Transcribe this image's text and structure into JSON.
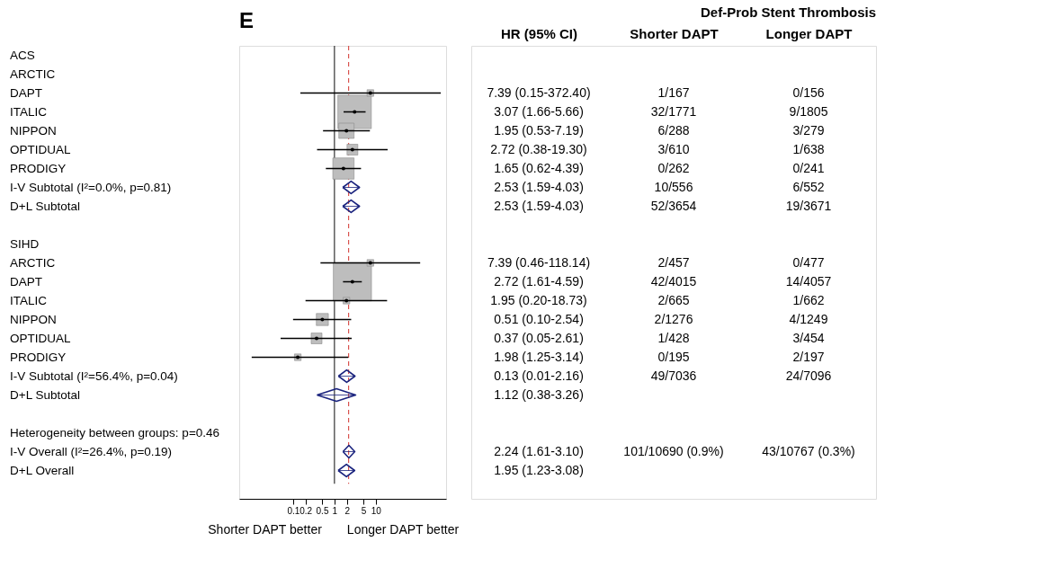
{
  "chart_data": [
    {
      "type": "scatter",
      "title": "E",
      "orientation": "horizontal",
      "log": "x",
      "grid": false,
      "legend": false,
      "xlim": [
        0.005,
        500
      ],
      "xticks": [
        0.1,
        0.2,
        0.5,
        1,
        2,
        5,
        10
      ],
      "categories": [
        "ACS",
        "ARCTIC",
        "DAPT",
        "ITALIC",
        "NIPPON",
        "OPTIDUAL",
        "PRODIGY",
        "I-V Subtotal  (I²=0.0%, p=0.81)",
        "D+L Subtotal",
        null,
        "SIHD",
        "ARCTIC",
        "DAPT",
        "ITALIC",
        "NIPPON",
        "OPTIDUAL",
        "PRODIGY",
        "I-V Subtotal  (I²=56.4%, p=0.04)",
        "D+L Subtotal",
        null,
        "Heterogeneity between groups: p=0.46",
        "I-V Overall  (I²=26.4%, p=0.19)",
        "D+L Overall"
      ],
      "series": [
        {
          "type": "bubble",
          "marker": "square",
          "color": "#bdbdbd",
          "values": [
            null,
            null,
            7.39,
            3.07,
            1.95,
            2.72,
            1.65,
            null,
            null,
            null,
            null,
            7.39,
            2.72,
            1.95,
            0.51,
            0.37,
            0.13,
            null,
            null,
            null,
            null,
            null,
            null
          ],
          "errors": [
            null,
            null,
            [
              0.15,
              372.4
            ],
            [
              1.66,
              5.66
            ],
            [
              0.53,
              7.19
            ],
            [
              0.38,
              19.3
            ],
            [
              0.62,
              4.39
            ],
            null,
            null,
            null,
            null,
            [
              0.46,
              118.14
            ],
            [
              1.61,
              4.59
            ],
            [
              0.2,
              18.73
            ],
            [
              0.1,
              2.54
            ],
            [
              0.05,
              2.61
            ],
            [
              0.01,
              2.16
            ],
            null,
            null,
            null,
            null,
            null,
            null
          ],
          "sizes": [
            null,
            null,
            0.03,
            0.77,
            0.16,
            0.08,
            0.31,
            null,
            null,
            null,
            null,
            0.03,
            1,
            0.03,
            0.1,
            0.08,
            0.03,
            null,
            null,
            null,
            null,
            null,
            null
          ]
        },
        {
          "type": "scatter",
          "marker": "diamond",
          "color": "#1a237e",
          "values": [
            null,
            null,
            null,
            null,
            null,
            null,
            null,
            2.53,
            2.53,
            null,
            null,
            null,
            null,
            null,
            null,
            null,
            null,
            1.98,
            1.12,
            null,
            null,
            2.24,
            1.95
          ],
          "errors": [
            null,
            null,
            null,
            null,
            null,
            null,
            null,
            [
              1.59,
              4.03
            ],
            [
              1.59,
              4.03
            ],
            null,
            null,
            null,
            null,
            null,
            null,
            null,
            null,
            [
              1.25,
              3.14
            ],
            [
              0.38,
              3.26
            ],
            null,
            null,
            [
              1.61,
              3.1
            ],
            [
              1.23,
              3.08
            ]
          ]
        }
      ],
      "ref_lines": [
        {
          "axis": "x",
          "value": 1,
          "color": "#333333",
          "line_style": "solid"
        },
        {
          "axis": "x",
          "value": 2.2,
          "color": "#d9534f",
          "line_style": "dashed"
        }
      ],
      "annotations": [
        "Shorter DAPT better",
        "Longer DAPT better"
      ]
    },
    {
      "type": "other",
      "title": "Def-Prob Stent Thrombosis",
      "categories": [
        "HR (95% CI)",
        "Shorter DAPT",
        "Longer DAPT"
      ],
      "cell_labels": [
        [
          null,
          null,
          null
        ],
        [
          null,
          null,
          null
        ],
        [
          "7.39 (0.15-372.40)",
          "1/167",
          "0/156"
        ],
        [
          "3.07 (1.66-5.66)",
          "32/1771",
          "9/1805"
        ],
        [
          "1.95 (0.53-7.19)",
          "6/288",
          "3/279"
        ],
        [
          "2.72 (0.38-19.30)",
          "3/610",
          "1/638"
        ],
        [
          "1.65 (0.62-4.39)",
          "0/262",
          "0/241"
        ],
        [
          "2.53 (1.59-4.03)",
          "10/556",
          "6/552"
        ],
        [
          "2.53 (1.59-4.03)",
          "52/3654",
          "19/3671"
        ],
        [
          null,
          null,
          null
        ],
        [
          null,
          null,
          null
        ],
        [
          "7.39 (0.46-118.14)",
          "2/457",
          "0/477"
        ],
        [
          "2.72 (1.61-4.59)",
          "42/4015",
          "14/4057"
        ],
        [
          "1.95 (0.20-18.73)",
          "2/665",
          "1/662"
        ],
        [
          "0.51 (0.10-2.54)",
          "2/1276",
          "4/1249"
        ],
        [
          "0.37 (0.05-2.61)",
          "1/428",
          "3/454"
        ],
        [
          "1.98 (1.25-3.14)",
          "0/195",
          "2/197"
        ],
        [
          "0.13 (0.01-2.16)",
          "49/7036",
          "24/7096"
        ],
        [
          "1.12 (0.38-3.26)",
          null,
          null
        ],
        [
          null,
          null,
          null
        ],
        [
          null,
          null,
          null
        ],
        [
          "2.24 (1.61-3.10)",
          "101/10690 (0.9%)",
          "43/10767 (0.3%)"
        ],
        [
          "1.95 (1.23-3.08)",
          null,
          null
        ]
      ]
    }
  ]
}
